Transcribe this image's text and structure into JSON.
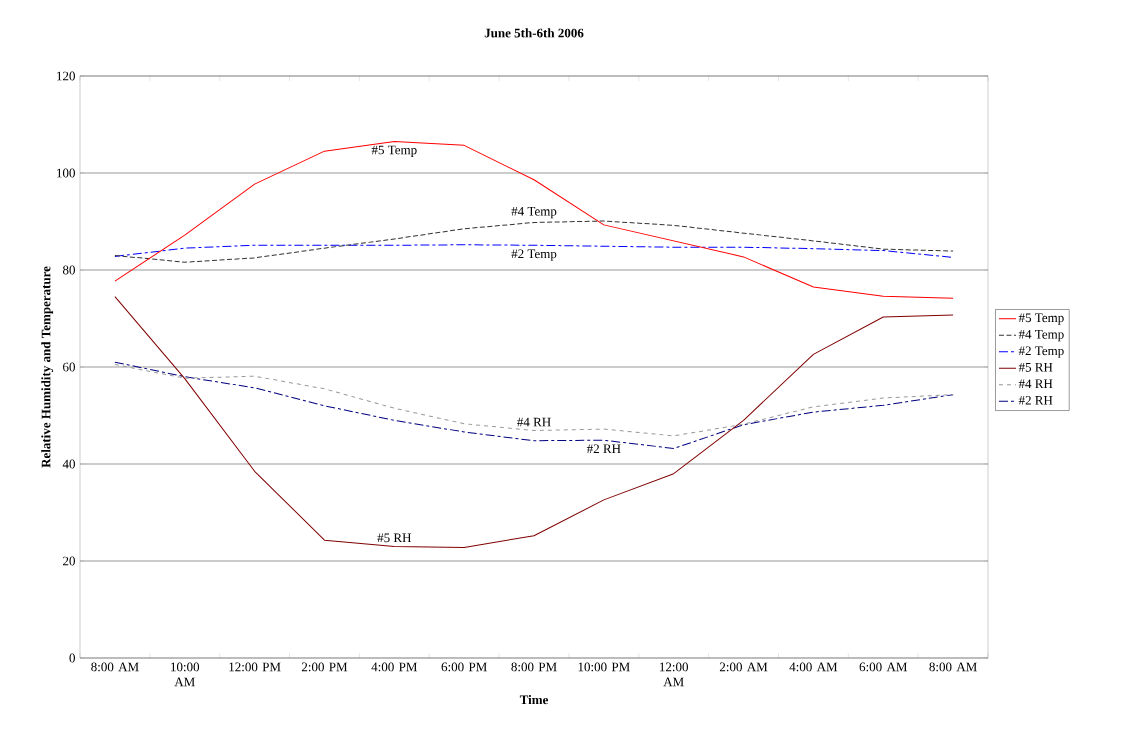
{
  "chart_data": {
    "type": "line",
    "title": "June 5th-6th 2006",
    "xlabel": "Time",
    "ylabel": "Relative Humidity and Temperature",
    "categories": [
      "8:00 AM",
      "10:00 AM",
      "12:00 PM",
      "2:00 PM",
      "4:00 PM",
      "6:00 PM",
      "8:00 PM",
      "10:00 PM",
      "12:00 AM",
      "2:00 AM",
      "4:00 AM",
      "6:00 AM",
      "8:00 AM"
    ],
    "ylim": [
      0,
      120
    ],
    "yticks": [
      0,
      20,
      40,
      60,
      80,
      100,
      120
    ],
    "grid": "y",
    "legend": "right",
    "marker": "none",
    "series": [
      {
        "name": "#5 Temp",
        "color": "#ff0000",
        "line_style": "solid",
        "values": [
          77.7,
          87.2,
          97.7,
          104.5,
          106.5,
          105.7,
          98.6,
          89.3,
          86,
          82.7,
          76.5,
          74.6,
          74.2
        ]
      },
      {
        "name": "#4 Temp",
        "color": "#333333",
        "line_style": "dashed",
        "values": [
          83,
          81.6,
          82.5,
          84.5,
          86.4,
          88.5,
          89.8,
          90.1,
          89.2,
          87.6,
          86,
          84.3,
          83.9
        ]
      },
      {
        "name": "#2 Temp",
        "color": "#0000ff",
        "line_style": "dashdot",
        "values": [
          82.8,
          84.5,
          85.1,
          85.1,
          85.1,
          85.2,
          85.1,
          84.9,
          84.7,
          84.7,
          84.4,
          84,
          82.6
        ]
      },
      {
        "name": "#5 RH",
        "color": "#800000",
        "line_style": "solid",
        "values": [
          74.5,
          57.6,
          38.5,
          24.3,
          23,
          22.8,
          25.2,
          32.6,
          38,
          49,
          62.6,
          70.3,
          70.7
        ]
      },
      {
        "name": "#4 RH",
        "color": "#999999",
        "line_style": "dotted",
        "values": [
          60.5,
          57.7,
          58.1,
          55.5,
          51.5,
          48.3,
          46.9,
          47.2,
          45.8,
          48.2,
          51.8,
          53.6,
          54.3
        ]
      },
      {
        "name": "#2 RH",
        "color": "#000080",
        "line_style": "dashdot",
        "values": [
          61,
          58,
          55.7,
          52,
          49,
          46.6,
          44.8,
          44.9,
          43.2,
          48.1,
          50.7,
          52.1,
          54.3
        ]
      }
    ],
    "annotations": [
      {
        "text": "#5 Temp",
        "x": "4:00 PM",
        "y": 106.5
      },
      {
        "text": "#4 Temp",
        "x": "8:00 PM",
        "y": 89.8
      },
      {
        "text": "#2 Temp",
        "x": "8:00 PM",
        "y": 85.1
      },
      {
        "text": "#4 RH",
        "x": "8:00 PM",
        "y": 46.9
      },
      {
        "text": "#2 RH",
        "x": "10:00 PM",
        "y": 44.9
      },
      {
        "text": "#5 RH",
        "x": "4:00 PM",
        "y": 23
      }
    ]
  }
}
